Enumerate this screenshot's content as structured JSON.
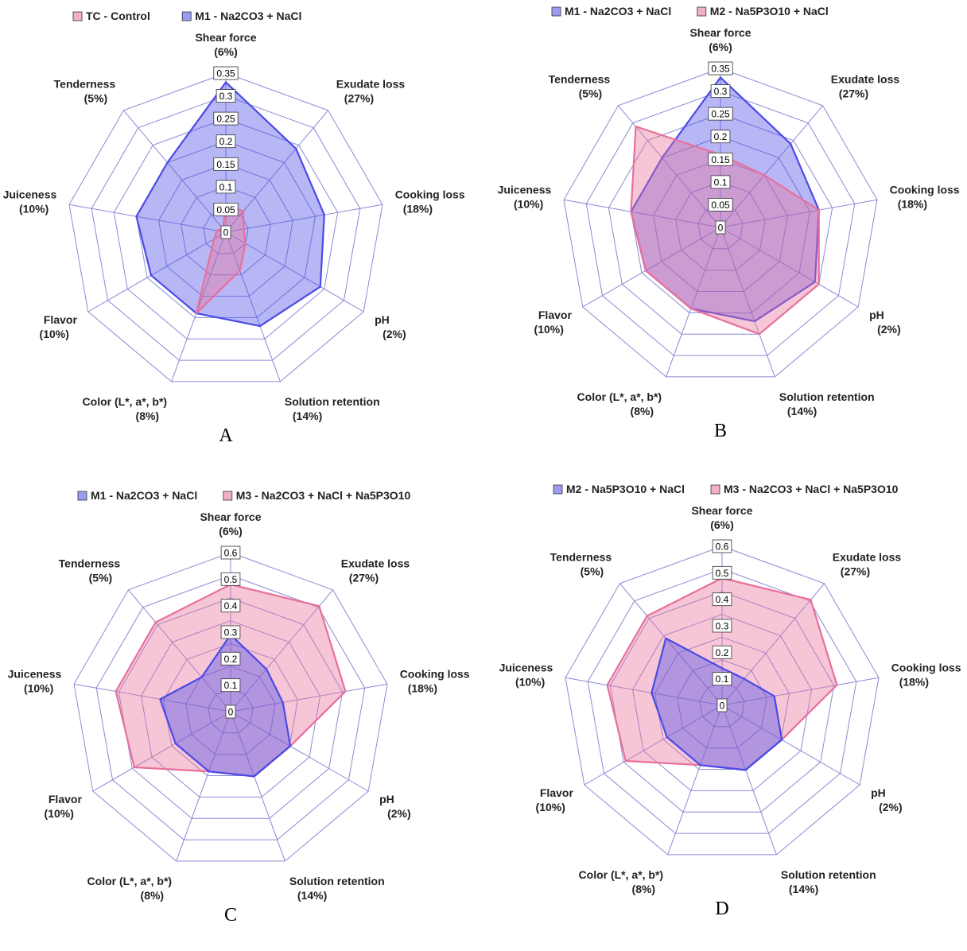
{
  "chart_data": [
    {
      "panel": "A",
      "type": "radar",
      "max": 0.35,
      "ticks": [
        "0",
        "0.05",
        "0.1",
        "0.15",
        "0.2",
        "0.25",
        "0.3",
        "0.35"
      ],
      "axes": [
        {
          "name": "Shear force",
          "weight": "(6%)"
        },
        {
          "name": "Exudate loss",
          "weight": "(27%)"
        },
        {
          "name": "Cooking loss",
          "weight": "(18%)"
        },
        {
          "name": "pH",
          "weight": "(2%)"
        },
        {
          "name": "Solution retention",
          "weight": "(14%)"
        },
        {
          "name": "Color (L*, a*, b*)",
          "weight": "(8%)"
        },
        {
          "name": "Flavor",
          "weight": "(10%)"
        },
        {
          "name": "Juiceness",
          "weight": "(10%)"
        },
        {
          "name": "Tenderness",
          "weight": "(5%)"
        }
      ],
      "series": [
        {
          "name": "M1 - Na2CO3 + NaCl",
          "color": "#4a4ae8",
          "values": [
            0.33,
            0.24,
            0.22,
            0.24,
            0.22,
            0.19,
            0.19,
            0.2,
            0.2
          ]
        },
        {
          "name": "TC - Control",
          "color": "#e8709a",
          "values": [
            0.06,
            0.06,
            0.04,
            0.05,
            0.09,
            0.19,
            0.03,
            0.02,
            0.01
          ]
        }
      ],
      "legend": [
        {
          "name": "TC - Control",
          "color": "#e8709a"
        },
        {
          "name": "M1 - Na2CO3 + NaCl",
          "color": "#4a4ae8"
        }
      ]
    },
    {
      "panel": "B",
      "type": "radar",
      "max": 0.35,
      "ticks": [
        "0",
        "0.05",
        "0.1",
        "0.15",
        "0.2",
        "0.25",
        "0.3",
        "0.35"
      ],
      "axes": [
        {
          "name": "Shear force",
          "weight": "(6%)"
        },
        {
          "name": "Exudate loss",
          "weight": "(27%)"
        },
        {
          "name": "Cooking loss",
          "weight": "(18%)"
        },
        {
          "name": "pH",
          "weight": "(2%)"
        },
        {
          "name": "Solution retention",
          "weight": "(14%)"
        },
        {
          "name": "Color (L*, a*, b*)",
          "weight": "(8%)"
        },
        {
          "name": "Flavor",
          "weight": "(10%)"
        },
        {
          "name": "Juiceness",
          "weight": "(10%)"
        },
        {
          "name": "Tenderness",
          "weight": "(5%)"
        }
      ],
      "series": [
        {
          "name": "M1 - Na2CO3 + NaCl",
          "color": "#4a4ae8",
          "values": [
            0.33,
            0.24,
            0.22,
            0.24,
            0.22,
            0.19,
            0.19,
            0.2,
            0.2
          ]
        },
        {
          "name": "M2 - Na5P3O10 + NaCl",
          "color": "#e8709a",
          "values": [
            0.16,
            0.15,
            0.22,
            0.25,
            0.25,
            0.19,
            0.19,
            0.2,
            0.29
          ]
        }
      ],
      "legend": [
        {
          "name": "M1 - Na2CO3 + NaCl",
          "color": "#4a4ae8"
        },
        {
          "name": "M2 - Na5P3O10 + NaCl",
          "color": "#e8709a"
        }
      ]
    },
    {
      "panel": "C",
      "type": "radar",
      "max": 0.6,
      "ticks": [
        "0",
        "0.1",
        "0.2",
        "0.3",
        "0.4",
        "0.5",
        "0.6"
      ],
      "axes": [
        {
          "name": "Shear force",
          "weight": "(6%)"
        },
        {
          "name": "Exudate loss",
          "weight": "(27%)"
        },
        {
          "name": "Cooking loss",
          "weight": "(18%)"
        },
        {
          "name": "pH",
          "weight": "(2%)"
        },
        {
          "name": "Solution retention",
          "weight": "(14%)"
        },
        {
          "name": "Color (L*, a*, b*)",
          "weight": "(8%)"
        },
        {
          "name": "Flavor",
          "weight": "(10%)"
        },
        {
          "name": "Juiceness",
          "weight": "(10%)"
        },
        {
          "name": "Tenderness",
          "weight": "(5%)"
        }
      ],
      "series": [
        {
          "name": "M3 - Na2CO3 + NaCl + Na5P3O10",
          "color": "#e8709a",
          "values": [
            0.48,
            0.52,
            0.44,
            0.26,
            0.26,
            0.24,
            0.42,
            0.44,
            0.44
          ]
        },
        {
          "name": "M1 - Na2CO3 + NaCl",
          "color": "#4a4ae8",
          "values": [
            0.29,
            0.21,
            0.2,
            0.26,
            0.26,
            0.24,
            0.24,
            0.27,
            0.17
          ]
        }
      ],
      "legend": [
        {
          "name": "M1 - Na2CO3 + NaCl",
          "color": "#4a4ae8"
        },
        {
          "name": "M3 - Na2CO3 + NaCl + Na5P3O10",
          "color": "#e8709a"
        }
      ]
    },
    {
      "panel": "D",
      "type": "radar",
      "max": 0.6,
      "ticks": [
        "0",
        "0.1",
        "0.2",
        "0.3",
        "0.4",
        "0.5",
        "0.6"
      ],
      "axes": [
        {
          "name": "Shear force",
          "weight": "(6%)"
        },
        {
          "name": "Exudate loss",
          "weight": "(27%)"
        },
        {
          "name": "Cooking loss",
          "weight": "(18%)"
        },
        {
          "name": "pH",
          "weight": "(2%)"
        },
        {
          "name": "Solution retention",
          "weight": "(14%)"
        },
        {
          "name": "Color (L*, a*, b*)",
          "weight": "(8%)"
        },
        {
          "name": "Flavor",
          "weight": "(10%)"
        },
        {
          "name": "Juiceness",
          "weight": "(10%)"
        },
        {
          "name": "Tenderness",
          "weight": "(5%)"
        }
      ],
      "series": [
        {
          "name": "M3 - Na2CO3 + NaCl + Na5P3O10",
          "color": "#e8709a",
          "values": [
            0.48,
            0.52,
            0.44,
            0.26,
            0.26,
            0.24,
            0.42,
            0.44,
            0.44
          ]
        },
        {
          "name": "M2 - Na5P3O10 + NaCl",
          "color": "#4a4ae8",
          "values": [
            0.14,
            0.13,
            0.2,
            0.26,
            0.26,
            0.24,
            0.24,
            0.27,
            0.33
          ]
        }
      ],
      "legend": [
        {
          "name": "M2 - Na5P3O10 + NaCl",
          "color": "#4a4ae8"
        },
        {
          "name": "M3 - Na2CO3 + NaCl + Na5P3O10",
          "color": "#e8709a"
        }
      ]
    }
  ]
}
